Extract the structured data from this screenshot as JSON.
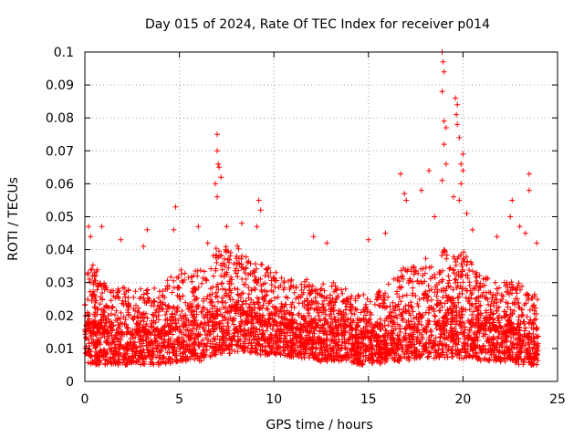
{
  "chart_data": {
    "type": "scatter",
    "title": "Day 015 of 2024, Rate Of TEC Index for receiver p014",
    "xlabel": "GPS time / hours",
    "ylabel": "ROTI / TECUs",
    "xlim": [
      0,
      25
    ],
    "ylim": [
      0,
      0.1
    ],
    "xticks": [
      0,
      5,
      10,
      15,
      20,
      25
    ],
    "xtick_labels": [
      "0",
      "5",
      "10",
      "15",
      "20",
      "25"
    ],
    "yticks": [
      0,
      0.01,
      0.02,
      0.03,
      0.04,
      0.05,
      0.06,
      0.07,
      0.08,
      0.09,
      0.1
    ],
    "ytick_labels": [
      "0",
      "0.01",
      "0.02",
      "0.03",
      "0.04",
      "0.05",
      "0.06",
      "0.07",
      "0.08",
      "0.09",
      "0.1"
    ],
    "grid": true,
    "marker": "+",
    "series": [
      {
        "name": "ROTI",
        "color": "#ff0000",
        "envelope": {
          "x": [
            0,
            0.5,
            1,
            1.5,
            2,
            2.5,
            3,
            3.5,
            4,
            4.5,
            5,
            5.5,
            6,
            6.5,
            7,
            7.5,
            8,
            8.5,
            9,
            9.5,
            10,
            10.5,
            11,
            11.5,
            12,
            12.5,
            13,
            13.5,
            14,
            14.5,
            15,
            15.5,
            16,
            16.5,
            17,
            17.5,
            18,
            18.5,
            19,
            19.5,
            20,
            20.5,
            21,
            21.5,
            22,
            22.5,
            23,
            23.5,
            24
          ],
          "median": [
            0.015,
            0.017,
            0.015,
            0.014,
            0.014,
            0.014,
            0.015,
            0.014,
            0.014,
            0.015,
            0.016,
            0.017,
            0.017,
            0.018,
            0.02,
            0.021,
            0.022,
            0.02,
            0.019,
            0.018,
            0.018,
            0.017,
            0.016,
            0.016,
            0.016,
            0.015,
            0.015,
            0.014,
            0.014,
            0.013,
            0.013,
            0.013,
            0.014,
            0.015,
            0.016,
            0.016,
            0.017,
            0.017,
            0.018,
            0.018,
            0.018,
            0.017,
            0.016,
            0.016,
            0.015,
            0.015,
            0.014,
            0.013,
            0.013
          ],
          "upper": [
            0.034,
            0.036,
            0.03,
            0.028,
            0.029,
            0.027,
            0.029,
            0.028,
            0.029,
            0.032,
            0.034,
            0.033,
            0.034,
            0.036,
            0.042,
            0.041,
            0.042,
            0.039,
            0.037,
            0.035,
            0.034,
            0.033,
            0.031,
            0.031,
            0.031,
            0.03,
            0.031,
            0.029,
            0.028,
            0.027,
            0.027,
            0.028,
            0.03,
            0.033,
            0.035,
            0.035,
            0.038,
            0.036,
            0.04,
            0.038,
            0.04,
            0.036,
            0.033,
            0.031,
            0.03,
            0.031,
            0.03,
            0.028,
            0.026
          ],
          "lower": [
            0.006,
            0.005,
            0.005,
            0.005,
            0.005,
            0.005,
            0.005,
            0.005,
            0.005,
            0.005,
            0.006,
            0.006,
            0.006,
            0.007,
            0.008,
            0.008,
            0.009,
            0.009,
            0.008,
            0.008,
            0.008,
            0.008,
            0.007,
            0.007,
            0.007,
            0.006,
            0.006,
            0.006,
            0.006,
            0.005,
            0.005,
            0.005,
            0.006,
            0.006,
            0.006,
            0.007,
            0.007,
            0.007,
            0.007,
            0.007,
            0.007,
            0.007,
            0.006,
            0.006,
            0.006,
            0.006,
            0.005,
            0.005,
            0.005
          ]
        },
        "outliers": [
          [
            0.2,
            0.047
          ],
          [
            0.3,
            0.044
          ],
          [
            0.9,
            0.047
          ],
          [
            1.9,
            0.043
          ],
          [
            3.1,
            0.041
          ],
          [
            3.3,
            0.046
          ],
          [
            4.7,
            0.046
          ],
          [
            4.8,
            0.053
          ],
          [
            6.0,
            0.047
          ],
          [
            6.5,
            0.042
          ],
          [
            6.9,
            0.06
          ],
          [
            7.0,
            0.075
          ],
          [
            7.0,
            0.07
          ],
          [
            7.05,
            0.066
          ],
          [
            7.1,
            0.065
          ],
          [
            7.2,
            0.062
          ],
          [
            7.0,
            0.056
          ],
          [
            7.5,
            0.047
          ],
          [
            8.3,
            0.048
          ],
          [
            9.2,
            0.055
          ],
          [
            9.3,
            0.052
          ],
          [
            9.1,
            0.047
          ],
          [
            12.1,
            0.044
          ],
          [
            12.8,
            0.042
          ],
          [
            15.0,
            0.043
          ],
          [
            15.9,
            0.045
          ],
          [
            16.7,
            0.063
          ],
          [
            16.9,
            0.057
          ],
          [
            17.0,
            0.055
          ],
          [
            17.8,
            0.058
          ],
          [
            18.2,
            0.064
          ],
          [
            18.5,
            0.05
          ],
          [
            18.9,
            0.1
          ],
          [
            18.95,
            0.097
          ],
          [
            19.0,
            0.094
          ],
          [
            18.9,
            0.088
          ],
          [
            19.0,
            0.079
          ],
          [
            19.1,
            0.077
          ],
          [
            19.0,
            0.072
          ],
          [
            19.1,
            0.066
          ],
          [
            18.9,
            0.061
          ],
          [
            19.6,
            0.086
          ],
          [
            19.7,
            0.084
          ],
          [
            19.65,
            0.081
          ],
          [
            19.7,
            0.078
          ],
          [
            19.8,
            0.074
          ],
          [
            20.0,
            0.069
          ],
          [
            19.9,
            0.066
          ],
          [
            19.5,
            0.056
          ],
          [
            19.9,
            0.06
          ],
          [
            20.0,
            0.064
          ],
          [
            19.8,
            0.055
          ],
          [
            20.2,
            0.051
          ],
          [
            20.5,
            0.046
          ],
          [
            21.8,
            0.044
          ],
          [
            22.5,
            0.05
          ],
          [
            22.6,
            0.055
          ],
          [
            23.0,
            0.047
          ],
          [
            23.5,
            0.063
          ],
          [
            23.5,
            0.058
          ],
          [
            23.3,
            0.045
          ],
          [
            23.9,
            0.042
          ]
        ]
      }
    ]
  }
}
